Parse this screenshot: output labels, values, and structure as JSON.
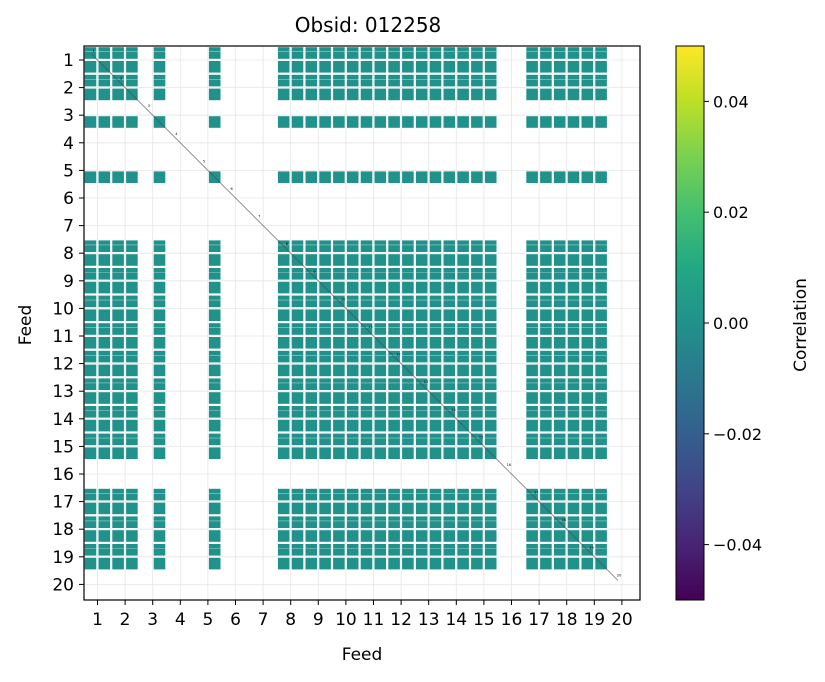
{
  "chart_data": {
    "type": "heatmap",
    "title": "Obsid: 012258",
    "xlabel": "Feed",
    "ylabel": "Feed",
    "x_ticks": [
      "1",
      "2",
      "3",
      "4",
      "5",
      "6",
      "7",
      "8",
      "9",
      "10",
      "11",
      "12",
      "13",
      "14",
      "15",
      "16",
      "17",
      "18",
      "19",
      "20"
    ],
    "y_ticks": [
      "1",
      "2",
      "3",
      "4",
      "5",
      "6",
      "7",
      "8",
      "9",
      "10",
      "11",
      "12",
      "13",
      "14",
      "15",
      "16",
      "17",
      "18",
      "19",
      "20"
    ],
    "matrix_value": 0.0,
    "cell_color": "#21918c",
    "active_feeds": [
      1,
      2,
      3,
      5,
      8,
      9,
      10,
      11,
      12,
      13,
      14,
      15,
      17,
      18,
      19
    ],
    "partial_feeds": [
      3,
      5
    ],
    "empty_feeds": [
      4,
      6,
      7,
      16,
      20
    ],
    "diagonal_labels": [
      "1",
      "2",
      "3",
      "4",
      "5",
      "6",
      "7",
      "8",
      "9",
      "10",
      "11",
      "12",
      "13",
      "14",
      "15",
      "16",
      "17",
      "18",
      "19",
      "20"
    ],
    "colorbar": {
      "label": "Correlation",
      "range": [
        -0.05,
        0.05
      ],
      "ticks": [
        "0.04",
        "0.02",
        "0.00",
        "−0.02",
        "−0.04"
      ],
      "tick_values": [
        0.04,
        0.02,
        0.0,
        -0.02,
        -0.04
      ],
      "colormap": "viridis"
    }
  }
}
